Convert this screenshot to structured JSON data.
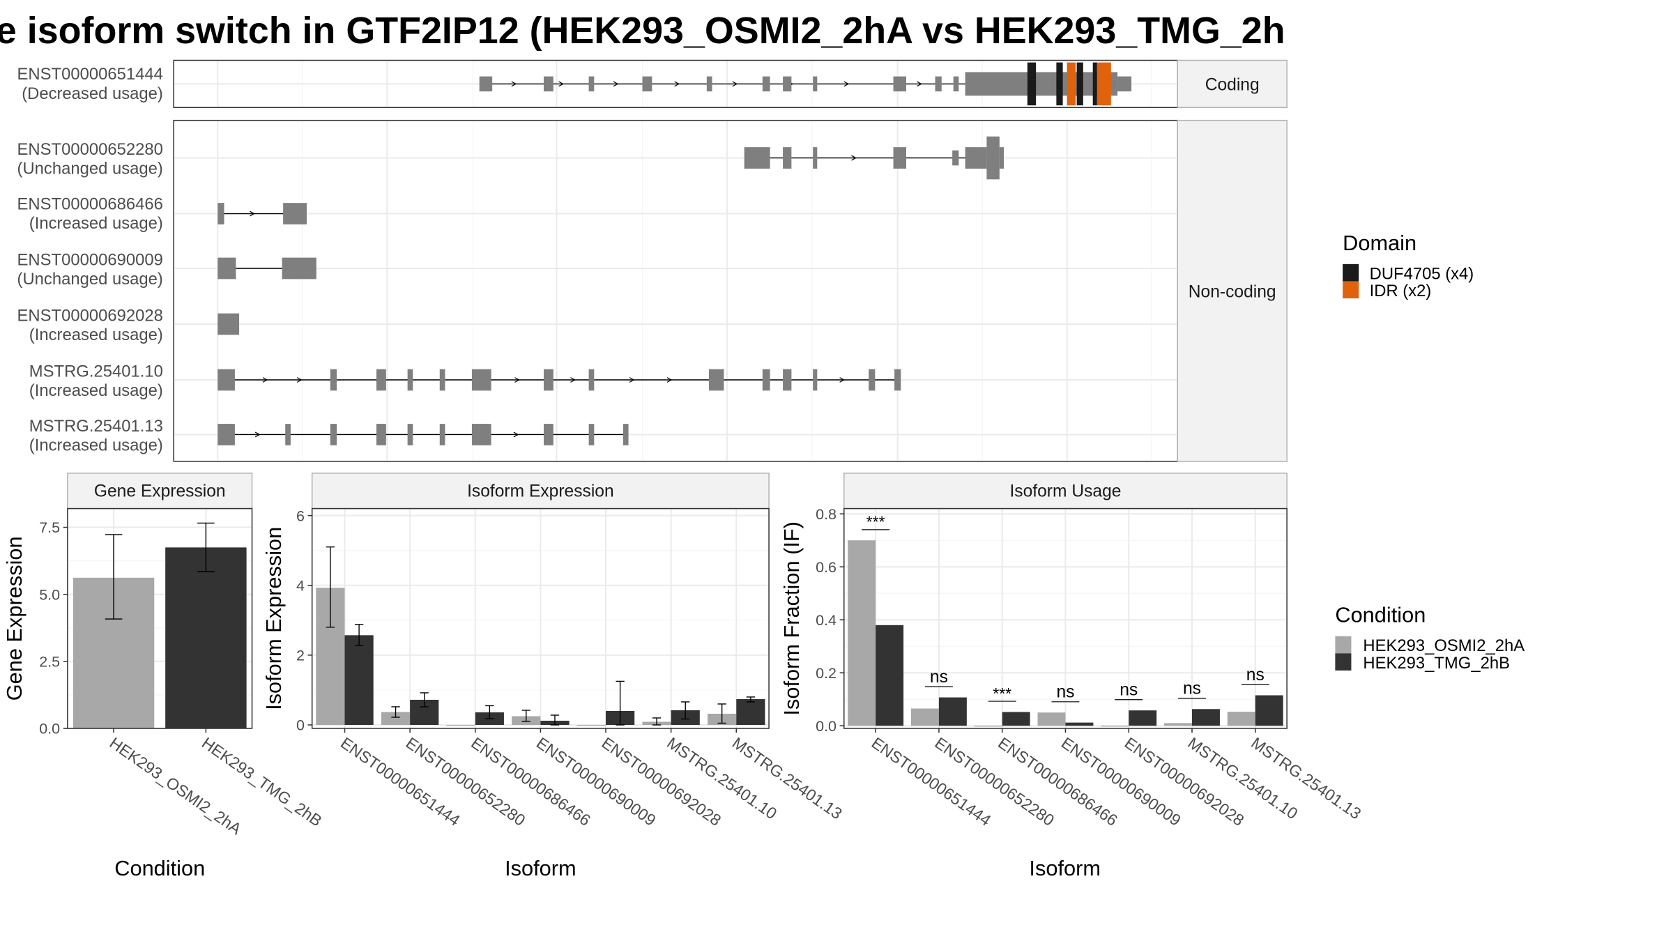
{
  "title": "e isoform switch in GTF2IP12 (HEK293_OSMI2_2hA vs HEK293_TMG_2h",
  "strip_labels": {
    "coding": "Coding",
    "noncoding": "Non-coding"
  },
  "transcripts": [
    {
      "id": "ENST00000651444",
      "usage": "(Decreased usage)",
      "group": "coding"
    },
    {
      "id": "ENST00000652280",
      "usage": "(Unchanged usage)",
      "group": "noncoding"
    },
    {
      "id": "ENST00000686466",
      "usage": "(Increased usage)",
      "group": "noncoding"
    },
    {
      "id": "ENST00000690009",
      "usage": "(Unchanged usage)",
      "group": "noncoding"
    },
    {
      "id": "ENST00000692028",
      "usage": "(Increased usage)",
      "group": "noncoding"
    },
    {
      "id": "MSTRG.25401.10",
      "usage": "(Increased usage)",
      "group": "noncoding"
    },
    {
      "id": "MSTRG.25401.13",
      "usage": "(Increased usage)",
      "group": "noncoding"
    }
  ],
  "domain_legend": {
    "title": "Domain",
    "items": [
      {
        "label": "DUF4705 (x4)",
        "color": "#1a1a1a"
      },
      {
        "label": "IDR (x2)",
        "color": "#e0620d"
      }
    ]
  },
  "condition_legend": {
    "title": "Condition",
    "items": [
      {
        "label": "HEK293_OSMI2_2hA",
        "color": "#a8a8a8"
      },
      {
        "label": "HEK293_TMG_2hB",
        "color": "#333333"
      }
    ]
  },
  "colors": {
    "exon": "#7f7f7f",
    "panel_border": "#333333",
    "strip_border": "#b3b3b3",
    "grid": "#ebebeb"
  },
  "chart_data": [
    {
      "type": "bar",
      "title": "Gene Expression",
      "xlabel": "Condition",
      "ylabel": "Gene Expression",
      "ylim": [
        0,
        8.2
      ],
      "yticks": [
        "0.0",
        "2.5",
        "5.0",
        "7.5"
      ],
      "categories": [
        "HEK293_OSMI2_2hA",
        "HEK293_TMG_2hB"
      ],
      "values": [
        5.62,
        6.75
      ],
      "errors": [
        [
          4.08,
          7.23
        ],
        [
          5.85,
          7.66
        ]
      ]
    },
    {
      "type": "bar",
      "title": "Isoform Expression",
      "xlabel": "Isoform",
      "ylabel": "Isoform Expression",
      "ylim": [
        -0.1,
        6.2
      ],
      "yticks": [
        "0",
        "2",
        "4",
        "6"
      ],
      "categories": [
        "ENST00000651444",
        "ENST00000652280",
        "ENST00000686466",
        "ENST00000690009",
        "ENST00000692028",
        "MSTRG.25401.10",
        "MSTRG.25401.13"
      ],
      "series": [
        {
          "name": "HEK293_OSMI2_2hA",
          "values": [
            3.93,
            0.37,
            0.0,
            0.25,
            0.0,
            0.09,
            0.32
          ],
          "errors": [
            [
              2.8,
              5.1
            ],
            [
              0.22,
              0.52
            ],
            null,
            [
              0.1,
              0.42
            ],
            null,
            [
              0.0,
              0.2
            ],
            [
              0.05,
              0.6
            ]
          ]
        },
        {
          "name": "HEK293_TMG_2hB",
          "values": [
            2.57,
            0.72,
            0.36,
            0.12,
            0.4,
            0.42,
            0.74
          ],
          "errors": [
            [
              2.28,
              2.88
            ],
            [
              0.52,
              0.92
            ],
            [
              0.18,
              0.55
            ],
            [
              0.0,
              0.28
            ],
            [
              0.0,
              1.25
            ],
            [
              0.17,
              0.66
            ],
            [
              0.66,
              0.8
            ]
          ]
        }
      ]
    },
    {
      "type": "bar",
      "title": "Isoform Usage",
      "xlabel": "Isoform",
      "ylabel": "Isoform Fraction (IF)",
      "ylim": [
        -0.01,
        0.82
      ],
      "yticks": [
        "0.0",
        "0.2",
        "0.4",
        "0.6",
        "0.8"
      ],
      "categories": [
        "ENST00000651444",
        "ENST00000652280",
        "ENST00000686466",
        "ENST00000690009",
        "ENST00000692028",
        "MSTRG.25401.10",
        "MSTRG.25401.13"
      ],
      "series": [
        {
          "name": "HEK293_OSMI2_2hA",
          "values": [
            0.7,
            0.065,
            0.0,
            0.05,
            0.0,
            0.01,
            0.053
          ]
        },
        {
          "name": "HEK293_TMG_2hB",
          "values": [
            0.38,
            0.107,
            0.052,
            0.012,
            0.058,
            0.063,
            0.115
          ]
        }
      ],
      "significance": [
        "***",
        "ns",
        "***",
        "ns",
        "ns",
        "ns",
        "ns"
      ]
    }
  ]
}
